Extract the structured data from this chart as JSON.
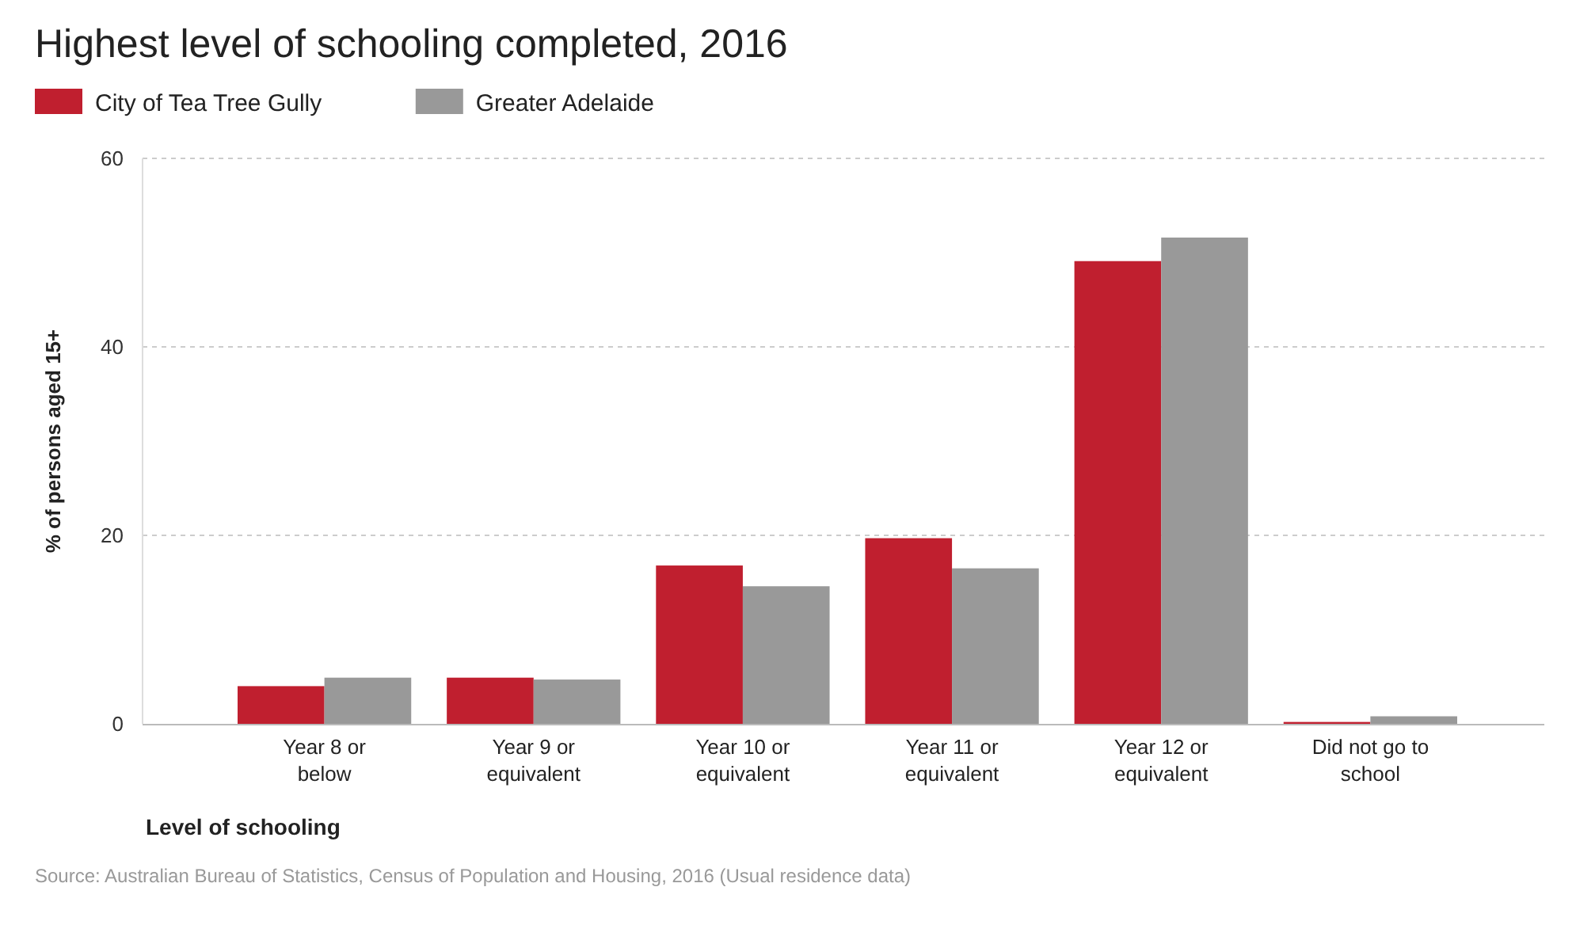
{
  "chart_data": {
    "type": "bar",
    "title": "Highest level of schooling completed, 2016",
    "xlabel": "Level of schooling",
    "ylabel": "% of persons aged 15+",
    "categories": [
      "Year 8 or below",
      "Year 9 or equivalent",
      "Year 10 or equivalent",
      "Year 11 or equivalent",
      "Year 12 or equivalent",
      "Did not go to school"
    ],
    "series": [
      {
        "name": "City of Tea Tree Gully",
        "color": "#c01f2f",
        "values": [
          4.0,
          4.9,
          16.8,
          19.7,
          49.1,
          0.2
        ]
      },
      {
        "name": "Greater Adelaide",
        "color": "#999999",
        "values": [
          4.9,
          4.7,
          14.6,
          16.5,
          51.6,
          0.8
        ]
      }
    ],
    "ylim": [
      0,
      60
    ],
    "yticks": [
      0,
      20,
      40,
      60
    ],
    "grid": "y",
    "legend": "top left",
    "annotations": [
      "Source: Australian Bureau of Statistics, Census of Population and Housing, 2016 (Usual residence data)"
    ]
  }
}
